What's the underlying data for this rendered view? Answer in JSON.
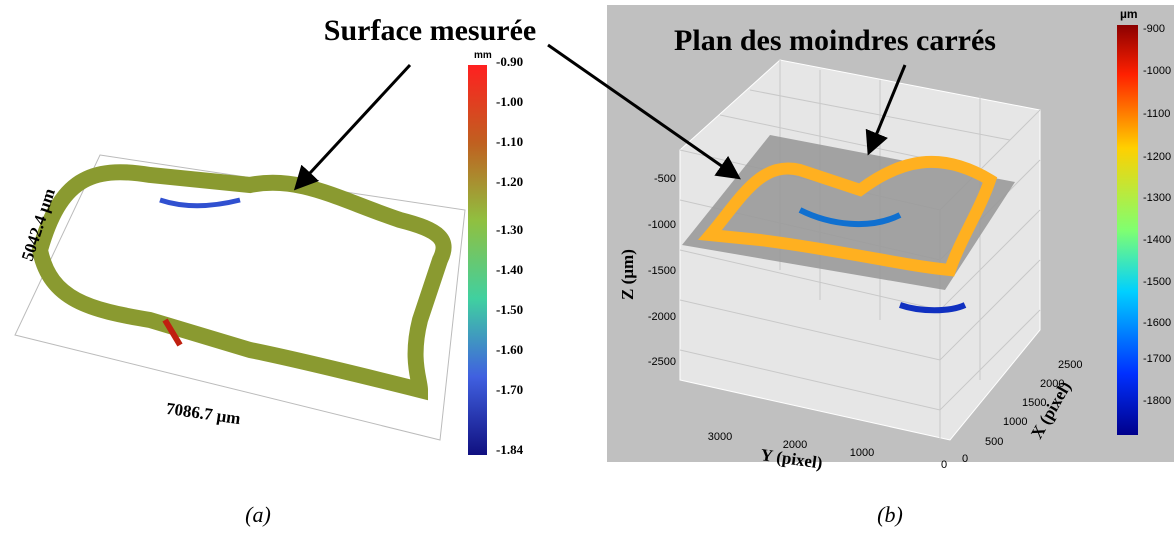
{
  "callouts": {
    "left": "Surface mesurée",
    "right": "Plan des moindres carrés"
  },
  "panel_a": {
    "colorbar_unit": "mm",
    "colorbar_ticks": [
      "-0.90",
      "-1.00",
      "-1.10",
      "-1.20",
      "-1.30",
      "-1.40",
      "-1.50",
      "-1.60",
      "-1.70",
      "-1.84"
    ],
    "width_label": "7086.7 µm",
    "height_label": "5042.4 µm",
    "caption": "(a)"
  },
  "panel_b": {
    "colorbar_unit": "µm",
    "colorbar_ticks": [
      "-900",
      "-1000",
      "-1100",
      "-1200",
      "-1300",
      "-1400",
      "-1500",
      "-1600",
      "-1700",
      "-1800"
    ],
    "z_label": "Z (µm)",
    "z_ticks": [
      "-500",
      "-1000",
      "-1500",
      "-2000",
      "-2500"
    ],
    "y_label": "Y (pixel)",
    "y_ticks": [
      "3000",
      "2000",
      "1000",
      "0"
    ],
    "x_label": "X (pixel)",
    "x_ticks": [
      "0",
      "500",
      "1000",
      "1500",
      "2000",
      "2500"
    ],
    "caption": "(b)"
  }
}
